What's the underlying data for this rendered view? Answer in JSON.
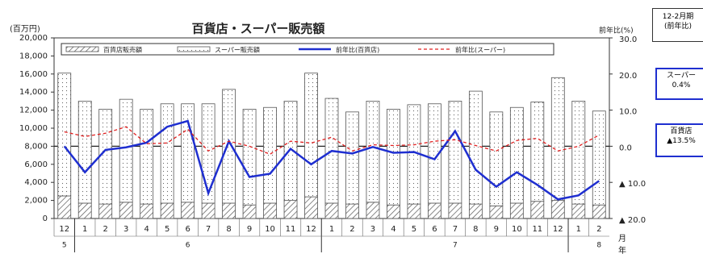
{
  "chart_data": {
    "type": "bar",
    "title": "百貨店・スーパー販売額",
    "y_label": "(百万円)",
    "y2_label": "前年比(%)",
    "x_label_month": "月",
    "x_label_year": "年",
    "categories": [
      "12",
      "1",
      "2",
      "3",
      "4",
      "5",
      "6",
      "7",
      "8",
      "9",
      "10",
      "11",
      "12",
      "1",
      "2",
      "3",
      "4",
      "5",
      "6",
      "7",
      "8",
      "9",
      "10",
      "11",
      "12",
      "1",
      "2"
    ],
    "year_labels": [
      "5",
      null,
      null,
      null,
      null,
      null,
      "6",
      null,
      null,
      null,
      null,
      null,
      null,
      null,
      null,
      null,
      null,
      null,
      null,
      "7",
      null,
      null,
      null,
      null,
      null,
      null,
      "8"
    ],
    "ylim": [
      0,
      20000
    ],
    "yticks": [
      0,
      {
        "value": 2000,
        "label": "2,000"
      },
      {
        "value": 4000,
        "label": "4,000"
      },
      {
        "value": 6000,
        "label": "6,000"
      },
      {
        "value": 8000,
        "label": "8,000"
      },
      {
        "value": 10000,
        "label": "10,000"
      },
      {
        "value": 12000,
        "label": "12,000"
      },
      {
        "value": 14000,
        "label": "14,000"
      },
      {
        "value": 16000,
        "label": "16,000"
      },
      {
        "value": 18000,
        "label": "18,000"
      },
      {
        "value": 20000,
        "label": "20,000"
      }
    ],
    "y2lim": [
      -20,
      30
    ],
    "y2ticks": [
      {
        "value": -20,
        "label": "▲ 20.0"
      },
      {
        "value": -10,
        "label": "▲ 10.0"
      },
      {
        "value": 0,
        "label": "0.0"
      },
      {
        "value": 10,
        "label": "10.0"
      },
      {
        "value": 20,
        "label": "20.0"
      },
      {
        "value": 30,
        "label": "30.0"
      }
    ],
    "series": [
      {
        "name": "百貨店販売額",
        "type": "bar",
        "pattern": "hatch",
        "color": "#555555",
        "values": [
          2500,
          1700,
          1600,
          1800,
          1600,
          1700,
          1800,
          1700,
          1700,
          1500,
          1700,
          2000,
          2400,
          1700,
          1600,
          1800,
          1500,
          1600,
          1700,
          1700,
          1600,
          1400,
          1700,
          1900,
          2000,
          1600,
          1500
        ]
      },
      {
        "name": "スーパー販売額",
        "type": "bar",
        "pattern": "dots",
        "color": "#555555",
        "values": [
          13600,
          11300,
          10500,
          11400,
          10500,
          11000,
          10900,
          11000,
          12600,
          10600,
          10600,
          11000,
          13700,
          11600,
          10200,
          11200,
          10600,
          11000,
          11000,
          11300,
          12500,
          10400,
          10600,
          11000,
          13600,
          11400,
          10400
        ]
      },
      {
        "name": "前年比(百貨店)",
        "type": "line",
        "axis": "y2",
        "color": "#1f2fd0",
        "dashed": false,
        "values": [
          0.0,
          -7.2,
          -1.0,
          -0.3,
          1.0,
          5.4,
          7.0,
          -13.0,
          1.4,
          -8.5,
          -7.6,
          -0.7,
          -5.0,
          -1.3,
          -2.0,
          -0.2,
          -1.8,
          -1.6,
          -3.6,
          4.2,
          -6.5,
          -11.2,
          -7.2,
          -10.7,
          -14.7,
          -13.6,
          -9.6
        ]
      },
      {
        "name": "前年比(スーパー)",
        "type": "line",
        "axis": "y2",
        "color": "#e02020",
        "dashed": true,
        "values": [
          4.0,
          2.7,
          3.6,
          5.4,
          0.7,
          0.9,
          4.7,
          -1.3,
          1.4,
          0.0,
          -2.2,
          1.4,
          0.9,
          2.5,
          -1.3,
          0.4,
          0.2,
          0.4,
          1.4,
          1.8,
          0.2,
          -1.3,
          1.6,
          2.2,
          -1.3,
          0.0,
          3.1
        ]
      }
    ],
    "summary": {
      "title": "12-2月期",
      "subtitle": "(前年比)",
      "items": [
        {
          "name": "スーパー",
          "value_label": "0.4%"
        },
        {
          "name": "百貨店",
          "value_label": "▲13.5%"
        }
      ]
    }
  }
}
